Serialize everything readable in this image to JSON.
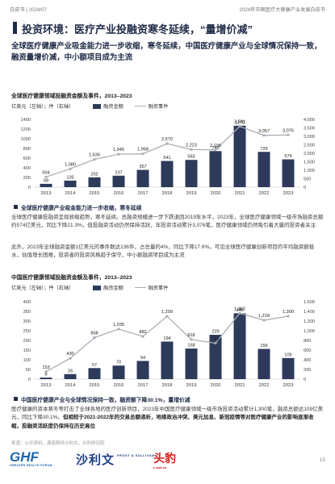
{
  "header": {
    "left": "白皮书 | 2024/07",
    "right": "2024年中国医疗大健康产业发展白皮书"
  },
  "section_title": "投资环境：医疗产业投融资寒冬延续，“量增价减”",
  "lead_text": "全球医疗健康产业吸金能力进一步收缩，寒冬延续，中国医疗健康产业与全球情况保持一致，融资量增价减，中小额项目成为主流",
  "chart_data": [
    {
      "type": "bar",
      "title": "全球医疗健康领域投融资金额及事件，2013–2023",
      "unit_label": "亿美元（左轴）；件（右轴）",
      "categories": [
        "2013",
        "2014",
        "2015",
        "2016",
        "2017",
        "2018",
        "2019",
        "2020",
        "2021",
        "2022",
        "2023"
      ],
      "series": [
        {
          "name": "融资金额",
          "type": "bar",
          "axis": "left",
          "color": "#2d3a5a",
          "values": [
            68,
            135,
            202,
            237,
            357,
            541,
            563,
            745,
            1270,
            729,
            574
          ]
        },
        {
          "name": "融资事件",
          "type": "line",
          "axis": "right",
          "color": "#a8adb6",
          "values": [
            604,
            1080,
            1636,
            1945,
            1968,
            2570,
            2223,
            2196,
            3591,
            3057,
            3076
          ]
        }
      ],
      "left_axis": {
        "ylim": [
          0,
          1400
        ],
        "ticks": [
          0,
          200,
          400,
          600,
          800,
          1000,
          1200,
          1400
        ]
      },
      "right_axis": {
        "ylim": [
          0,
          4000
        ],
        "ticks": [
          "0",
          "500",
          "1,000",
          "1,500",
          "2,000",
          "2,500",
          "3,000",
          "3,500",
          "4,000"
        ]
      },
      "line_labels": [
        "604",
        "1,080",
        "1,636",
        "1,945",
        "1,968",
        "2,570",
        "2,223",
        "2,196",
        "3,591",
        "3,057",
        "3,076"
      ]
    },
    {
      "type": "bar",
      "title": "中国医疗健康领域投融资金额及事件，2013–2023",
      "unit_label": "亿美元（左轴）；件（右轴）",
      "categories": [
        "2013",
        "2014",
        "2015",
        "2016",
        "2017",
        "2018",
        "2019",
        "2020",
        "2021",
        "2022",
        "2023"
      ],
      "series": [
        {
          "name": "融资金额",
          "type": "bar",
          "axis": "left",
          "color": "#2d3a5a",
          "values": [
            8,
            26,
            57,
            70,
            94,
            194,
            158,
            229,
            340,
            156,
            109
          ]
        },
        {
          "name": "融资事件",
          "type": "line",
          "axis": "right",
          "color": "#a8adb6",
          "values": [
            153,
            430,
            858,
            1035,
            882,
            1299,
            818,
            743,
            1362,
            1218,
            1300
          ]
        }
      ],
      "left_axis": {
        "ylim": [
          0,
          400
        ],
        "ticks": [
          0,
          50,
          100,
          150,
          200,
          250,
          300,
          350,
          400
        ]
      },
      "right_axis": {
        "ylim": [
          0,
          1600
        ],
        "ticks": [
          "0",
          "200",
          "400",
          "600",
          "800",
          "1,000",
          "1,200",
          "1,400",
          "1,600"
        ]
      },
      "line_labels": [
        "153",
        "430",
        "858",
        "1,035",
        "882",
        "1,299",
        "818",
        "743",
        "1,362",
        "1,218",
        "1,300"
      ]
    }
  ],
  "legend": {
    "bar": "融资金额",
    "line": "融资事件"
  },
  "section1": {
    "bullet": "全球医疗健康产业吸金能力进一步收缩，寒冬延续",
    "para1": "全球医疗健康投融资呈现收缩趋势，寒冬延续。总融资规模进一步下跌退回2019年水平，2023年，全球医疗健康领域一级市场融资总额约574亿美元，同比下降21.3%，但投融资活动仍然保持活跃，年投资活动累计3,076笔，医疗健康领域仍然吸引着大量的投资者关注",
    "para2": "此外，2023年全球融资金额1亿美元的事件数达136件，占总量的4%，同比下降17.6%。可见全球医疗健康创新项目的平均融资额极水，估值增长困难，投资者的投资风格趋于保守，中小额融资项目成为主流"
  },
  "section2": {
    "bullet": "中国医疗健康产业与全球情况保持一致，融资额下降30.1%，量增价减",
    "para_normal": "医疗健康的资本寒冬等打击了全球各地的医疗创新项目，2023年中国医疗健康领域一级市场投资活动累计1,300笔，融资总额达109亿美元，同比下降30.1%。",
    "para_bold": "但相较于2021-2022年的交易总额递析，地缘政治冲突、美元加息、新冠疫情等对医疗健康产业的影响逐渐收缩，投融资活跃度仍保持在历史高位"
  },
  "source": "来源：公开资料，弗若斯特沙利文，头豹研究院",
  "logos": {
    "ghf": "GHF",
    "ghf_sub": "GREATER HEALTH FORUM",
    "fs": "沙利文",
    "fs_sub": "FROST & SULLIVAN",
    "lb": "头豹",
    "lb_sub": "LeadLeo"
  },
  "page_number": "15"
}
